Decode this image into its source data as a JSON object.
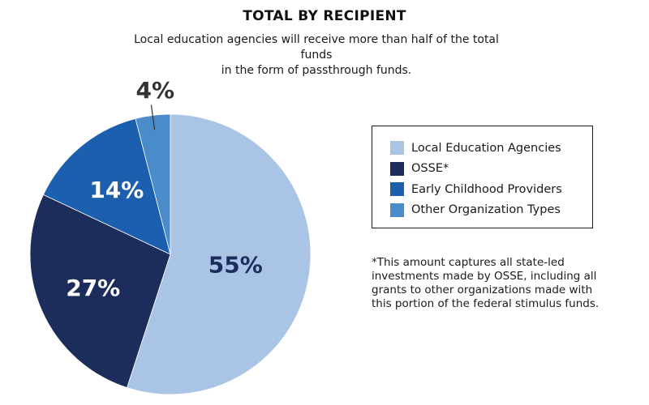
{
  "title": "TOTAL BY RECIPIENT",
  "subtitle_line1": "Local education agencies will receive more than half of the total funds",
  "subtitle_line2": "in the form of passthrough funds.",
  "footnote": [
    "*This amount captures all state-led",
    "investments made by OSSE, including all",
    "grants to other organizations made with",
    "this portion of the federal stimulus funds."
  ],
  "chart_data": {
    "type": "pie",
    "title": "TOTAL BY RECIPIENT",
    "legend_position": "right",
    "slices": [
      {
        "label": "Local Education Agencies",
        "value": 55,
        "display": "55%",
        "color": "#aac4e5",
        "label_color": "#1d2d5b"
      },
      {
        "label": "OSSE*",
        "value": 27,
        "display": "27%",
        "color": "#1d2d5b",
        "label_color": "#ffffff"
      },
      {
        "label": "Early Childhood Providers",
        "value": 14,
        "display": "14%",
        "color": "#1b5fae",
        "label_color": "#ffffff"
      },
      {
        "label": "Other Organization Types",
        "value": 4,
        "display": "4%",
        "color": "#4a8bca",
        "label_color": "#333333"
      }
    ]
  }
}
